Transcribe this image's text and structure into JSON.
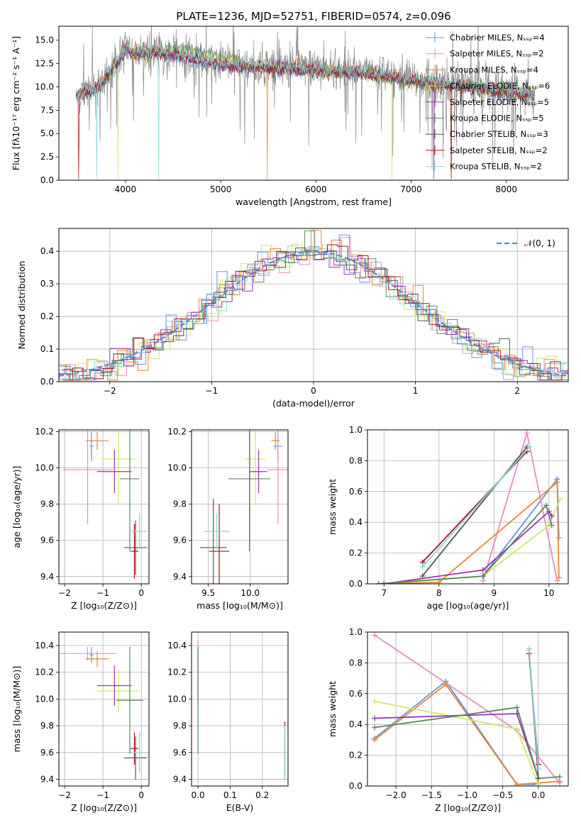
{
  "colors": {
    "chabrier_miles": "#6395e8",
    "salpeter_miles": "#e58cc0",
    "kroupa_miles": "#e8862e",
    "chabrier_elodie": "#cfe860",
    "salpeter_elodie": "#9a30b8",
    "kroupa_elodie": "#5a8a5a",
    "chabrier_stelib": "#555555",
    "salpeter_stelib": "#aa1111",
    "kroupa_stelib": "#80d8e0",
    "normal": "#5b8bd6",
    "grid": "#b0b0b0"
  },
  "chart_data": [
    {
      "id": "spectrum",
      "type": "line",
      "title": "PLATE=1236, MJD=52751, FIBERID=0574, z=0.096",
      "xlabel": "wavelength [Angstrom, rest frame]",
      "ylabel": "Flux [fλ10⁻¹⁷ erg cm⁻² s⁻¹ A⁻¹]",
      "xlim": [
        3300,
        8650
      ],
      "ylim": [
        0,
        16.5
      ],
      "xticks": [
        4000,
        5000,
        6000,
        7000,
        8000
      ],
      "yticks": [
        0.0,
        2.5,
        5.0,
        7.5,
        10.0,
        12.5,
        15.0
      ],
      "grid": false,
      "legend_position": "top-right",
      "legend": [
        "Chabrier MILES, Nₛₛₚ=4",
        "Salpeter MILES, Nₛₛₚ=2",
        "Kroupa MILES, Nₛₛₚ=4",
        "Chabrier ELODIE, Nₛₛₚ=6",
        "Salpeter ELODIE, Nₛₛₚ=5",
        "Kroupa ELODIE, Nₛₛₚ=5",
        "Chabrier STELIB, Nₛₛₚ=3",
        "Salpeter STELIB, Nₛₛₚ=2",
        "Kroupa STELIB, Nₛₛₚ=2"
      ],
      "data_wavelength_range": [
        3500,
        8300
      ],
      "model_continuum": {
        "x": [
          3500,
          3700,
          3900,
          4000,
          4100,
          4300,
          4500,
          4700,
          5000,
          5300,
          5600,
          6000,
          6300,
          6600,
          7000,
          7200,
          7500,
          8000,
          8300
        ],
        "y": [
          9.3,
          10.1,
          12.6,
          14.3,
          13.8,
          13.9,
          13.7,
          13.2,
          12.6,
          12.3,
          12.2,
          12.0,
          11.8,
          11.5,
          10.8,
          10.6,
          10.3,
          9.7,
          9.3
        ]
      }
    },
    {
      "id": "residuals",
      "type": "histogram",
      "xlabel": "(data-model)/error",
      "ylabel": "Normed distribution",
      "xlim": [
        -2.5,
        2.5
      ],
      "ylim": [
        0,
        0.47
      ],
      "xticks": [
        -2,
        -1,
        0,
        1,
        2
      ],
      "yticks": [
        0.0,
        0.1,
        0.2,
        0.3,
        0.4
      ],
      "grid": true,
      "legend_position": "top-right",
      "legend": [
        "𝒩(0, 1)"
      ],
      "bin_width": 0.1,
      "normal": {
        "mean": 0,
        "sigma": 1
      }
    },
    {
      "id": "age_vs_Z",
      "type": "scatter",
      "xlabel": "Z [log₁₀(Z/Z⊙)]",
      "ylabel": "age  [log₁₀(age/yr)]",
      "xlim": [
        -2.15,
        0.2
      ],
      "ylim": [
        9.36,
        10.21
      ],
      "xticks": [
        -2,
        -1,
        0
      ],
      "yticks": [
        9.4,
        9.6,
        9.8,
        10.0,
        10.2
      ],
      "grid": true,
      "points": [
        {
          "model": "chabrier_miles",
          "x": -1.3,
          "y": 10.12,
          "xerr": 0.05,
          "yerr": 0.08
        },
        {
          "model": "salpeter_miles",
          "x": -1.4,
          "y": 9.99,
          "xerr": 0.65,
          "yerr": 0.3
        },
        {
          "model": "kroupa_miles",
          "x": -1.15,
          "y": 10.15,
          "xerr": 0.3,
          "yerr": 0.05
        },
        {
          "model": "chabrier_elodie",
          "x": -0.6,
          "y": 10.05,
          "xerr": 0.45,
          "yerr": 0.25
        },
        {
          "model": "salpeter_elodie",
          "x": -0.7,
          "y": 9.98,
          "xerr": 0.45,
          "yerr": 0.12
        },
        {
          "model": "kroupa_elodie",
          "x": -0.3,
          "y": 9.94,
          "xerr": 0.25,
          "yerr": 0.4
        },
        {
          "model": "chabrier_stelib",
          "x": -0.15,
          "y": 9.56,
          "xerr": 0.3,
          "yerr": 0.15
        },
        {
          "model": "salpeter_stelib",
          "x": -0.18,
          "y": 9.54,
          "xerr": 0.1,
          "yerr": 0.15
        },
        {
          "model": "kroupa_stelib",
          "x": -0.05,
          "y": 9.65,
          "xerr": 0.2,
          "yerr": 0.1
        }
      ]
    },
    {
      "id": "age_vs_mass",
      "type": "scatter",
      "xlabel": "mass [log₁₀(M/M⊙)]",
      "ylabel": "",
      "xlim": [
        9.3,
        10.45
      ],
      "ylim": [
        9.36,
        10.21
      ],
      "xticks": [
        9.5,
        10.0
      ],
      "yticks": [
        9.4,
        9.6,
        9.8,
        10.0,
        10.2
      ],
      "grid": true,
      "points": [
        {
          "model": "chabrier_miles",
          "x": 10.33,
          "y": 10.12,
          "xerr": 0.05,
          "yerr": 0.08
        },
        {
          "model": "salpeter_miles",
          "x": 10.33,
          "y": 9.99,
          "xerr": 0.12,
          "yerr": 0.3
        },
        {
          "model": "kroupa_miles",
          "x": 10.3,
          "y": 10.15,
          "xerr": 0.05,
          "yerr": 0.05
        },
        {
          "model": "chabrier_elodie",
          "x": 10.06,
          "y": 10.05,
          "xerr": 0.12,
          "yerr": 0.25
        },
        {
          "model": "salpeter_elodie",
          "x": 10.1,
          "y": 9.98,
          "xerr": 0.1,
          "yerr": 0.12
        },
        {
          "model": "kroupa_elodie",
          "x": 9.99,
          "y": 9.94,
          "xerr": 0.25,
          "yerr": 0.4
        },
        {
          "model": "chabrier_stelib",
          "x": 9.56,
          "y": 9.56,
          "xerr": 0.16,
          "yerr": 0.27
        },
        {
          "model": "salpeter_stelib",
          "x": 9.63,
          "y": 9.54,
          "xerr": 0.12,
          "yerr": 0.26
        },
        {
          "model": "kroupa_stelib",
          "x": 9.6,
          "y": 9.65,
          "xerr": 0.15,
          "yerr": 0.1
        }
      ]
    },
    {
      "id": "weight_vs_age",
      "type": "line",
      "xlabel": "age  [log₁₀(age/yr)]",
      "ylabel": "mass weight",
      "xlim": [
        6.7,
        10.35
      ],
      "ylim": [
        0,
        1.0
      ],
      "xticks": [
        7,
        8,
        9,
        10
      ],
      "yticks": [
        0.0,
        0.2,
        0.4,
        0.6,
        0.8,
        1.0
      ],
      "grid": true,
      "series": [
        {
          "model": "chabrier_miles",
          "x": [
            6.9,
            8.8,
            10.15,
            10.18
          ],
          "y": [
            0.0,
            0.05,
            0.68,
            0.3
          ]
        },
        {
          "model": "salpeter_miles",
          "x": [
            8.8,
            9.6,
            10.15
          ],
          "y": [
            0.02,
            0.98,
            0.02
          ]
        },
        {
          "model": "kroupa_miles",
          "x": [
            6.9,
            8.0,
            10.15,
            10.18
          ],
          "y": [
            0.0,
            0.01,
            0.66,
            0.04
          ]
        },
        {
          "model": "chabrier_elodie",
          "x": [
            6.9,
            8.8,
            10.0,
            10.2
          ],
          "y": [
            0.0,
            0.05,
            0.38,
            0.55
          ]
        },
        {
          "model": "salpeter_elodie",
          "x": [
            7.0,
            8.8,
            10.0,
            10.05
          ],
          "y": [
            0.0,
            0.09,
            0.47,
            0.44
          ]
        },
        {
          "model": "kroupa_elodie",
          "x": [
            6.9,
            8.8,
            9.95,
            10.05
          ],
          "y": [
            0.0,
            0.05,
            0.51,
            0.38
          ]
        },
        {
          "model": "chabrier_stelib",
          "x": [
            7.7,
            9.6
          ],
          "y": [
            0.05,
            0.89
          ]
        },
        {
          "model": "salpeter_stelib",
          "x": [
            7.7,
            9.6
          ],
          "y": [
            0.14,
            0.86
          ]
        },
        {
          "model": "kroupa_stelib",
          "x": [
            7.7,
            9.65
          ],
          "y": [
            0.11,
            0.89
          ]
        }
      ]
    },
    {
      "id": "mass_vs_Z",
      "type": "scatter",
      "xlabel": "Z [log₁₀(Z/Z⊙)]",
      "ylabel": "mass [log₁₀(M/M⊙)]",
      "xlim": [
        -2.15,
        0.2
      ],
      "ylim": [
        9.35,
        10.5
      ],
      "xticks": [
        -2,
        -1,
        0
      ],
      "yticks": [
        9.4,
        9.6,
        9.8,
        10.0,
        10.2,
        10.4
      ],
      "grid": true,
      "points": [
        {
          "model": "chabrier_miles",
          "x": -1.3,
          "y": 10.33,
          "xerr": 0.05,
          "yerr": 0.06
        },
        {
          "model": "salpeter_miles",
          "x": -1.4,
          "y": 10.34,
          "xerr": 0.75,
          "yerr": 0.05
        },
        {
          "model": "kroupa_miles",
          "x": -1.15,
          "y": 10.3,
          "xerr": 0.3,
          "yerr": 0.06
        },
        {
          "model": "chabrier_elodie",
          "x": -0.6,
          "y": 10.06,
          "xerr": 0.55,
          "yerr": 0.16
        },
        {
          "model": "salpeter_elodie",
          "x": -0.7,
          "y": 10.1,
          "xerr": 0.45,
          "yerr": 0.15
        },
        {
          "model": "kroupa_elodie",
          "x": -0.3,
          "y": 9.99,
          "xerr": 0.35,
          "yerr": 0.4
        },
        {
          "model": "chabrier_stelib",
          "x": -0.15,
          "y": 9.56,
          "xerr": 0.3,
          "yerr": 0.16
        },
        {
          "model": "salpeter_stelib",
          "x": -0.18,
          "y": 9.63,
          "xerr": 0.1,
          "yerr": 0.12
        },
        {
          "model": "kroupa_stelib",
          "x": -0.05,
          "y": 9.6,
          "xerr": 0.2,
          "yerr": 0.15
        }
      ]
    },
    {
      "id": "mass_vs_ebv",
      "type": "scatter",
      "xlabel": "E(B-V)",
      "ylabel": "",
      "xlim": [
        -0.02,
        0.28
      ],
      "ylim": [
        9.35,
        10.5
      ],
      "xticks": [
        0.0,
        0.1,
        0.2
      ],
      "yticks": [
        9.4,
        9.6,
        9.8,
        10.0,
        10.2,
        10.4
      ],
      "grid": true,
      "points": [
        {
          "model": "chabrier_miles",
          "x": 0.0,
          "y": 10.33,
          "xerr": 0,
          "yerr": 0.06
        },
        {
          "model": "salpeter_miles",
          "x": 0.0,
          "y": 10.34,
          "xerr": 0,
          "yerr": 0.1
        },
        {
          "model": "kroupa_miles",
          "x": 0.0,
          "y": 10.3,
          "xerr": 0,
          "yerr": 0.06
        },
        {
          "model": "chabrier_elodie",
          "x": 0.0,
          "y": 10.06,
          "xerr": 0,
          "yerr": 0.16
        },
        {
          "model": "salpeter_elodie",
          "x": 0.0,
          "y": 10.1,
          "xerr": 0,
          "yerr": 0.15
        },
        {
          "model": "kroupa_elodie",
          "x": 0.0,
          "y": 9.99,
          "xerr": 0,
          "yerr": 0.4
        },
        {
          "model": "chabrier_stelib",
          "x": 0.27,
          "y": 9.56,
          "xerr": 0,
          "yerr": 0.16
        },
        {
          "model": "salpeter_stelib",
          "x": 0.27,
          "y": 9.63,
          "xerr": 0,
          "yerr": 0.2
        },
        {
          "model": "kroupa_stelib",
          "x": 0.27,
          "y": 9.6,
          "xerr": 0,
          "yerr": 0.2
        }
      ]
    },
    {
      "id": "weight_vs_Z",
      "type": "line",
      "xlabel": "Z [log₁₀(Z/Z⊙)]",
      "ylabel": "mass weight",
      "xlim": [
        -2.4,
        0.42
      ],
      "ylim": [
        0,
        1.0
      ],
      "xticks": [
        -2.0,
        -1.5,
        -1.0,
        -0.5,
        0.0
      ],
      "yticks": [
        0.0,
        0.2,
        0.4,
        0.6,
        0.8,
        1.0
      ],
      "grid": true,
      "series": [
        {
          "model": "chabrier_miles",
          "x": [
            -2.3,
            -1.3,
            -0.3,
            0.0
          ],
          "y": [
            0.31,
            0.68,
            0.01,
            0.01
          ]
        },
        {
          "model": "salpeter_miles",
          "x": [
            -2.3,
            -0.3,
            0.3
          ],
          "y": [
            0.98,
            0.36,
            0.02
          ]
        },
        {
          "model": "kroupa_miles",
          "x": [
            -2.3,
            -1.3,
            -0.3,
            0.3
          ],
          "y": [
            0.3,
            0.66,
            0.01,
            0.03
          ]
        },
        {
          "model": "chabrier_elodie",
          "x": [
            -2.3,
            -0.3,
            0.0
          ],
          "y": [
            0.55,
            0.37,
            0.01
          ]
        },
        {
          "model": "salpeter_elodie",
          "x": [
            -2.3,
            -0.3,
            0.0
          ],
          "y": [
            0.44,
            0.47,
            0.05
          ]
        },
        {
          "model": "kroupa_elodie",
          "x": [
            -2.3,
            -0.3,
            0.0,
            0.3
          ],
          "y": [
            0.38,
            0.51,
            0.05,
            0.06
          ]
        },
        {
          "model": "chabrier_stelib",
          "x": [
            -0.13,
            0.0
          ],
          "y": [
            0.89,
            0.05
          ]
        },
        {
          "model": "salpeter_stelib",
          "x": [
            -0.13,
            0.0
          ],
          "y": [
            0.86,
            0.14
          ]
        },
        {
          "model": "kroupa_stelib",
          "x": [
            -0.13,
            0.0
          ],
          "y": [
            0.89,
            0.11
          ]
        }
      ]
    }
  ]
}
